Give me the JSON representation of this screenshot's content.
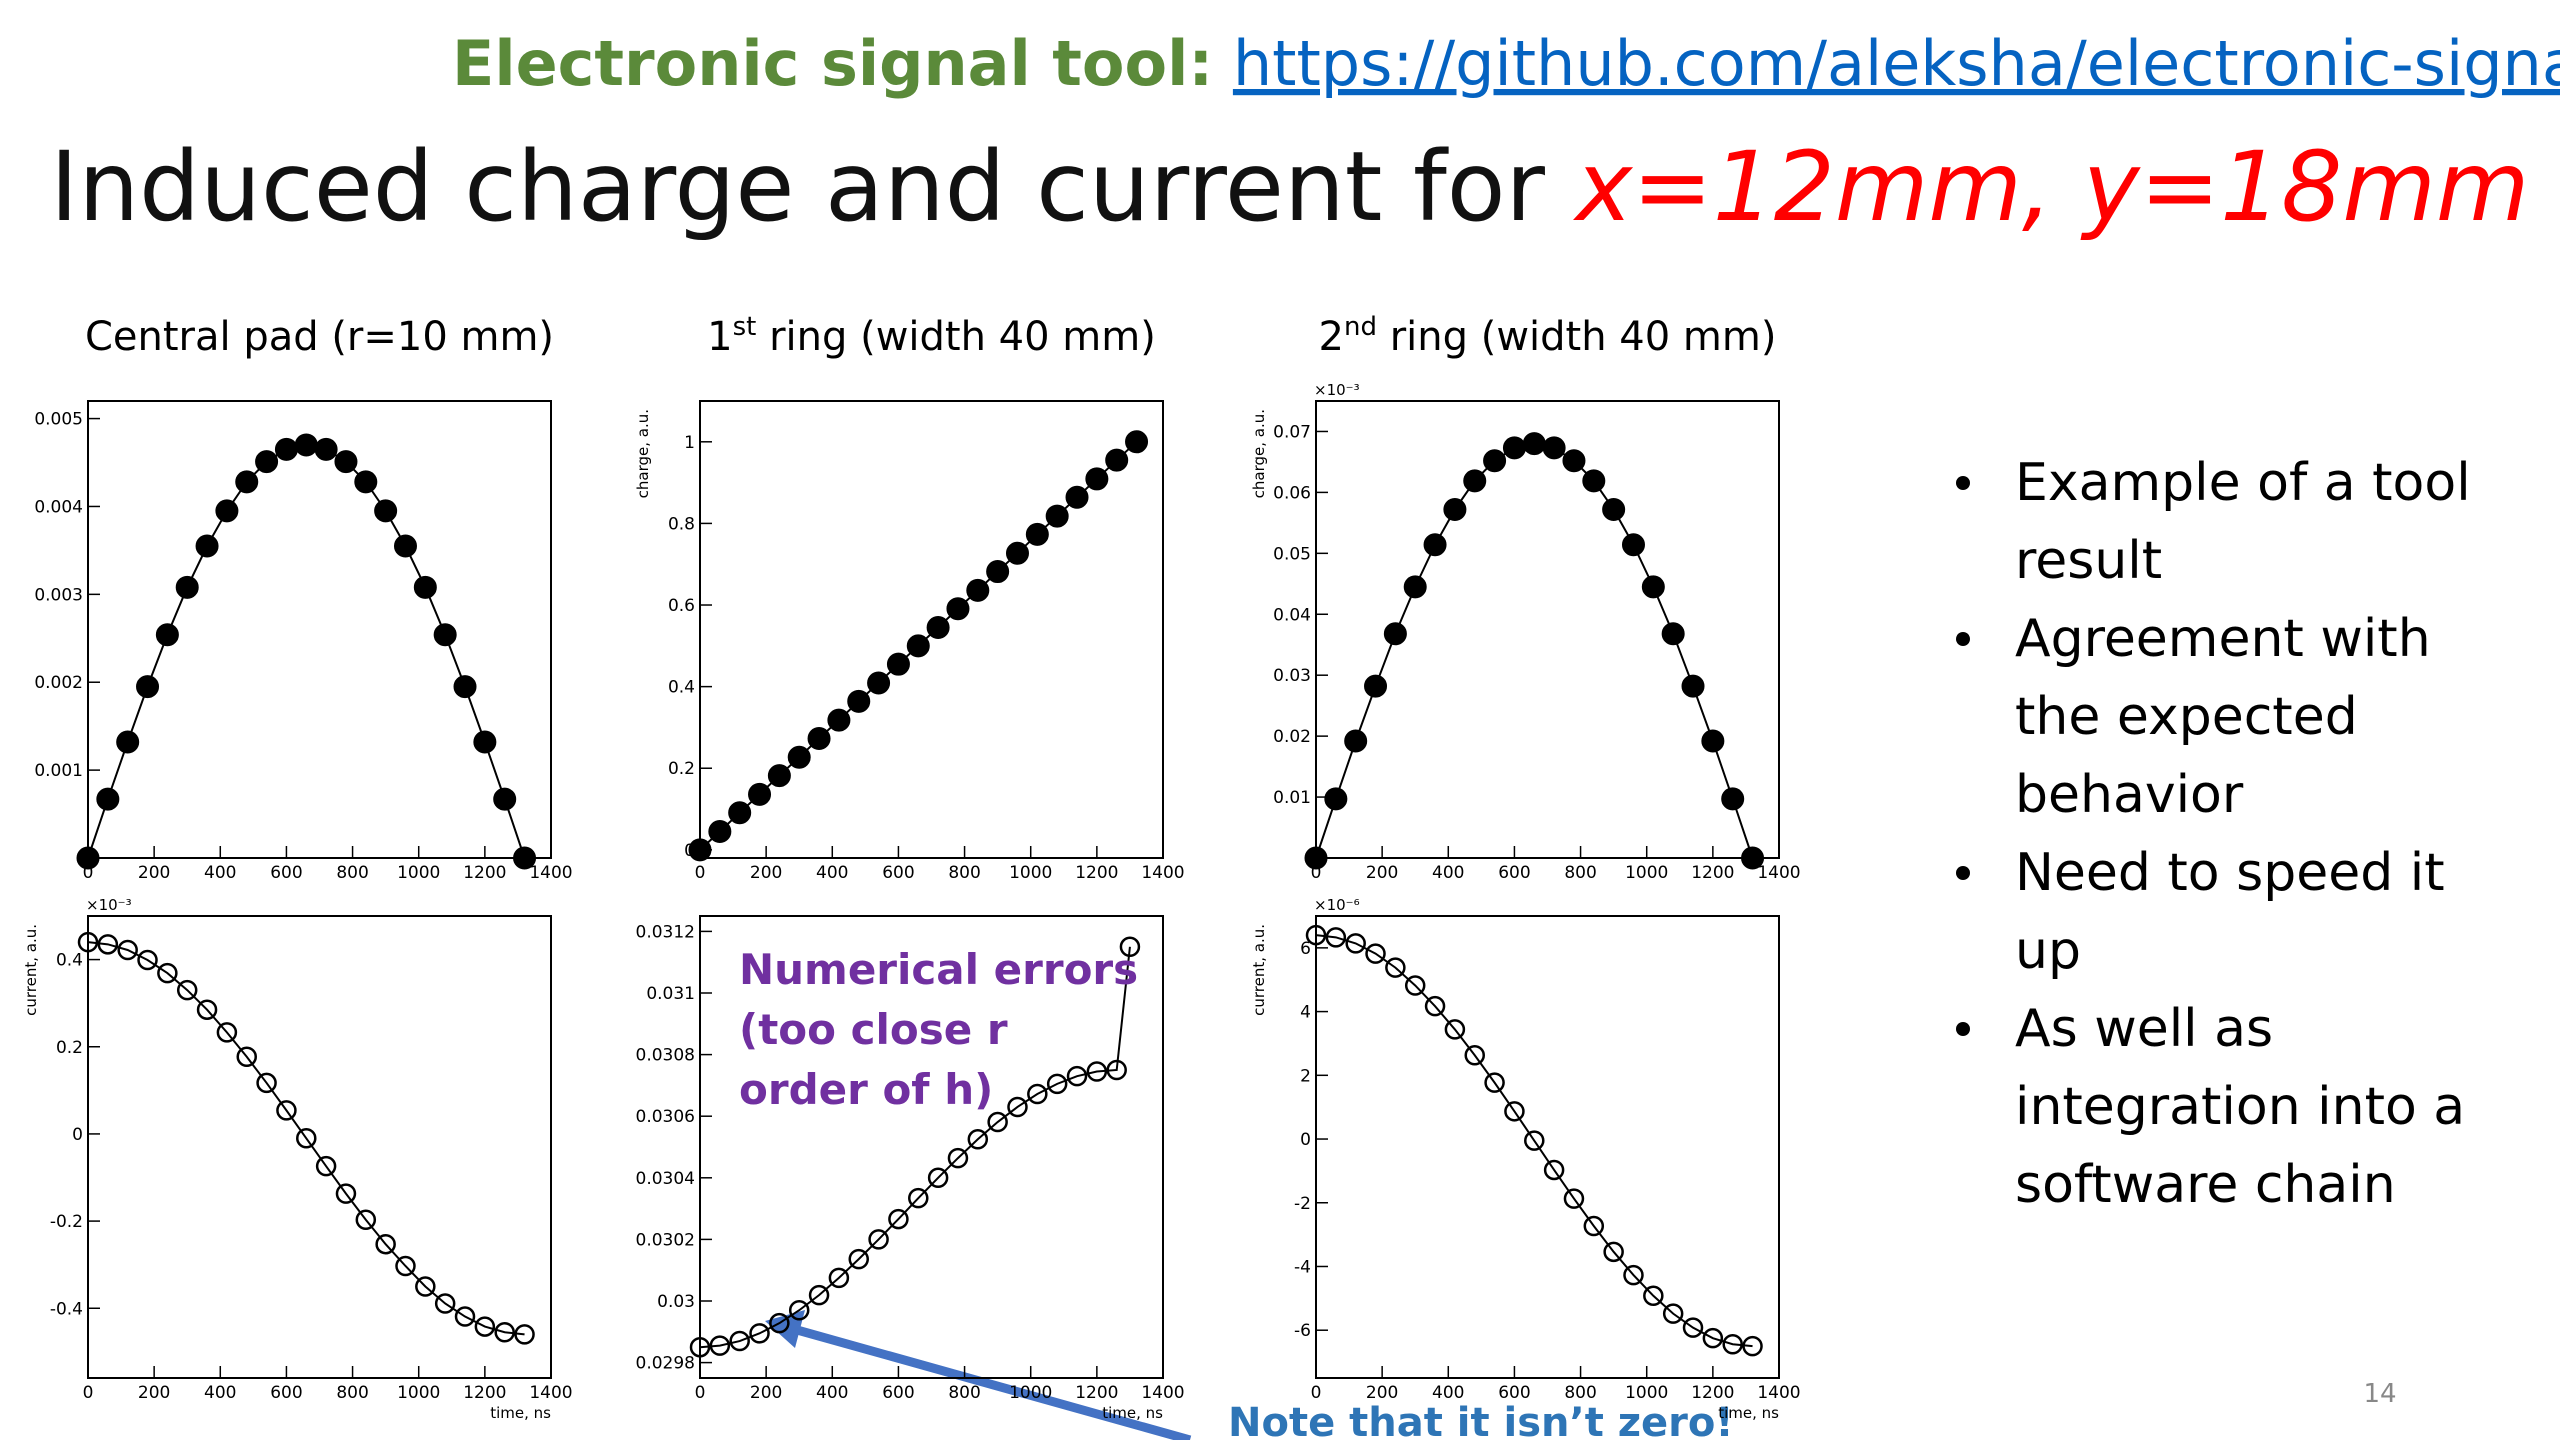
{
  "header": {
    "label": "Electronic signal tool:",
    "link": "https://github.com/aleksha/electronic-signal"
  },
  "title": {
    "text": "Induced charge and current for ",
    "highlight": "x=12mm, y=18mm"
  },
  "bullets": [
    [
      "Example of a tool",
      "result"
    ],
    [
      "Agreement with",
      "the expected",
      "behavior"
    ],
    [
      "Need to speed it",
      "up"
    ],
    [
      "As well as",
      "integration into a",
      "software chain"
    ]
  ],
  "note": "Note that it isn’t zero!",
  "page_number": "14",
  "chart_data": [
    {
      "type": "line",
      "title": {
        "text": "Central pad (r=10 mm)"
      },
      "x": [
        0,
        60,
        120,
        180,
        240,
        300,
        360,
        420,
        480,
        540,
        600,
        660,
        720,
        780,
        840,
        900,
        960,
        1020,
        1080,
        1140,
        1200,
        1260,
        1320
      ],
      "series": [
        {
          "color": "#000000",
          "marker": "filled",
          "values": [
            0,
            0.00067,
            0.00132,
            0.00195,
            0.00254,
            0.00308,
            0.00355,
            0.00395,
            0.00428,
            0.00451,
            0.00465,
            0.0047,
            0.00465,
            0.00451,
            0.00428,
            0.00395,
            0.00355,
            0.00308,
            0.00254,
            0.00195,
            0.00132,
            0.00067,
            0
          ]
        }
      ],
      "xlim": [
        0,
        1400
      ],
      "ylim": [
        0,
        0.0052
      ],
      "xticks": [
        0,
        200,
        400,
        600,
        800,
        1000,
        1200,
        1400
      ],
      "yticks": [
        0.001,
        0.002,
        0.003,
        0.004,
        0.005
      ]
    },
    {
      "type": "line",
      "title": {
        "number": "1",
        "suffix": "st",
        "text": " ring (width 40 mm)"
      },
      "x": [
        0,
        60,
        120,
        180,
        240,
        300,
        360,
        420,
        480,
        540,
        600,
        660,
        720,
        780,
        840,
        900,
        960,
        1020,
        1080,
        1140,
        1200,
        1260,
        1320
      ],
      "series": [
        {
          "color": "#000000",
          "marker": "filled",
          "values": [
            0,
            0.045,
            0.091,
            0.136,
            0.182,
            0.227,
            0.273,
            0.318,
            0.364,
            0.409,
            0.455,
            0.5,
            0.545,
            0.591,
            0.636,
            0.682,
            0.727,
            0.773,
            0.818,
            0.864,
            0.909,
            0.955,
            1
          ]
        }
      ],
      "xlim": [
        0,
        1400
      ],
      "ylim": [
        -0.02,
        1.1
      ],
      "xticks": [
        0,
        200,
        400,
        600,
        800,
        1000,
        1200,
        1400
      ],
      "yticks": [
        0,
        0.2,
        0.4,
        0.6,
        0.8,
        1
      ],
      "ylabel": "charge, a.u."
    },
    {
      "type": "line",
      "title": {
        "number": "2",
        "suffix": "nd",
        "text": " ring (width 40 mm)"
      },
      "x": [
        0,
        60,
        120,
        180,
        240,
        300,
        360,
        420,
        480,
        540,
        600,
        660,
        720,
        780,
        840,
        900,
        960,
        1020,
        1080,
        1140,
        1200,
        1260,
        1320
      ],
      "series": [
        {
          "color": "#000000",
          "marker": "filled",
          "values": [
            0,
            0.0097,
            0.0192,
            0.0282,
            0.0368,
            0.0445,
            0.0514,
            0.0572,
            0.0619,
            0.0652,
            0.0673,
            0.068,
            0.0673,
            0.0652,
            0.0619,
            0.0572,
            0.0514,
            0.0445,
            0.0368,
            0.0282,
            0.0192,
            0.0097,
            0
          ]
        }
      ],
      "xlim": [
        0,
        1400
      ],
      "ylim": [
        0,
        0.075
      ],
      "xticks": [
        0,
        200,
        400,
        600,
        800,
        1000,
        1200,
        1400
      ],
      "yticks": [
        0.01,
        0.02,
        0.03,
        0.04,
        0.05,
        0.06,
        0.07
      ],
      "ylabel": "charge, a.u.",
      "multiplier": "×10⁻³"
    },
    {
      "type": "line",
      "x": [
        0,
        60,
        120,
        180,
        240,
        300,
        360,
        420,
        480,
        540,
        600,
        660,
        720,
        780,
        840,
        900,
        960,
        1020,
        1080,
        1140,
        1200,
        1260,
        1320
      ],
      "series": [
        {
          "color": "#000000",
          "marker": "open",
          "values": [
            0.44,
            0.435,
            0.422,
            0.399,
            0.369,
            0.33,
            0.285,
            0.233,
            0.177,
            0.117,
            0.054,
            -0.01,
            -0.074,
            -0.137,
            -0.197,
            -0.253,
            -0.303,
            -0.35,
            -0.389,
            -0.419,
            -0.442,
            -0.455,
            -0.46
          ]
        }
      ],
      "xlim": [
        0,
        1400
      ],
      "ylim": [
        -0.56,
        0.5
      ],
      "xticks": [
        0,
        200,
        400,
        600,
        800,
        1000,
        1200,
        1400
      ],
      "yticks": [
        -0.4,
        -0.2,
        0,
        0.2,
        0.4
      ],
      "ylabel": "current, a.u.",
      "xlabel": "time, ns",
      "multiplier": "×10⁻³"
    },
    {
      "type": "line",
      "x": [
        0,
        60,
        120,
        180,
        240,
        300,
        360,
        420,
        480,
        540,
        600,
        660,
        720,
        780,
        840,
        900,
        960,
        1020,
        1080,
        1140,
        1200,
        1260,
        1300
      ],
      "series": [
        {
          "color": "#000000",
          "marker": "open",
          "values": [
            0.02985,
            0.029855,
            0.02987,
            0.029895,
            0.029928,
            0.02997,
            0.030019,
            0.030075,
            0.030136,
            0.0302,
            0.030266,
            0.030334,
            0.0304,
            0.030464,
            0.030525,
            0.030581,
            0.03063,
            0.030672,
            0.030705,
            0.03073,
            0.030745,
            0.03075,
            0.03115
          ]
        }
      ],
      "xlim": [
        0,
        1400
      ],
      "ylim": [
        0.02975,
        0.03125
      ],
      "xticks": [
        0,
        200,
        400,
        600,
        800,
        1000,
        1200,
        1400
      ],
      "yticks": [
        0.0298,
        0.03,
        0.0302,
        0.0304,
        0.0306,
        0.0308,
        0.031,
        0.0312
      ],
      "xlabel": "time, ns",
      "annotation": [
        "Numerical errors",
        "(too close r",
        "order of h)"
      ]
    },
    {
      "type": "line",
      "x": [
        0,
        60,
        120,
        180,
        240,
        300,
        360,
        420,
        480,
        540,
        600,
        660,
        720,
        780,
        840,
        900,
        960,
        1020,
        1080,
        1140,
        1200,
        1260,
        1320
      ],
      "series": [
        {
          "color": "#000000",
          "marker": "open",
          "values": [
            6.4,
            6.33,
            6.14,
            5.82,
            5.38,
            4.82,
            4.17,
            3.44,
            2.63,
            1.77,
            0.87,
            -0.05,
            -0.97,
            -1.87,
            -2.73,
            -3.54,
            -4.27,
            -4.92,
            -5.48,
            -5.92,
            -6.25,
            -6.44,
            -6.5
          ]
        }
      ],
      "xlim": [
        0,
        1400
      ],
      "ylim": [
        -7.5,
        7
      ],
      "xticks": [
        0,
        200,
        400,
        600,
        800,
        1000,
        1200,
        1400
      ],
      "yticks": [
        -6,
        -4,
        -2,
        0,
        2,
        4,
        6
      ],
      "ylabel": "current, a.u.",
      "xlabel": "time, ns",
      "multiplier": "×10⁻⁶"
    }
  ]
}
